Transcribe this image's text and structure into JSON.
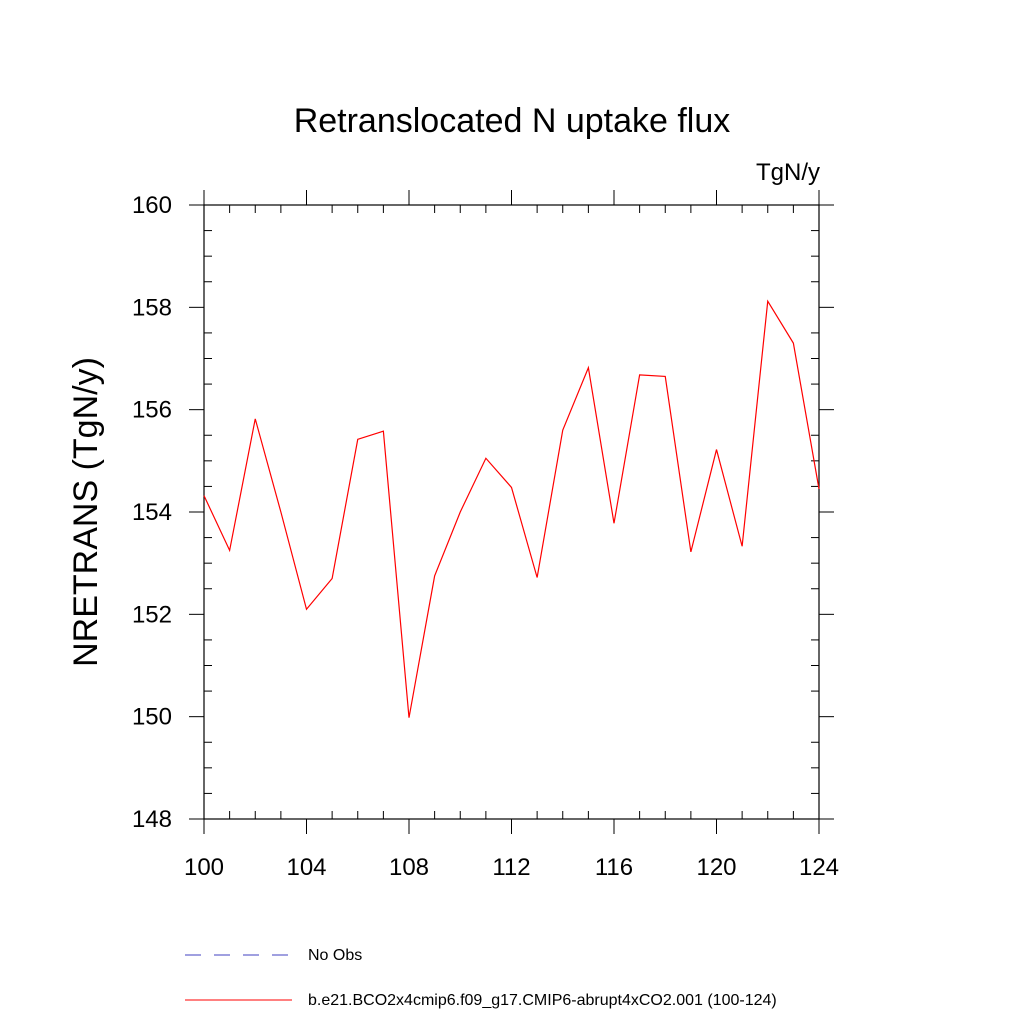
{
  "chart_data": {
    "type": "line",
    "title": "Retranslocated N uptake flux",
    "units": "TgN/y",
    "xlabel": "",
    "ylabel": "NRETRANS  (TgN/y)",
    "xlim": [
      100,
      124
    ],
    "ylim": [
      148,
      160
    ],
    "xticks": [
      100,
      104,
      108,
      112,
      116,
      120,
      124
    ],
    "xtick_labels": [
      "100",
      "104",
      "108",
      "112",
      "116",
      "120",
      "124"
    ],
    "yticks": [
      148,
      150,
      152,
      154,
      156,
      158,
      160
    ],
    "ytick_labels": [
      "148",
      "150",
      "152",
      "154",
      "156",
      "158",
      "160"
    ],
    "x": [
      100,
      101,
      102,
      103,
      104,
      105,
      106,
      107,
      108,
      109,
      110,
      111,
      112,
      113,
      114,
      115,
      116,
      117,
      118,
      119,
      120,
      121,
      122,
      123,
      124
    ],
    "series": [
      {
        "name": "b.e21.BCO2x4cmip6.f09_g17.CMIP6-abrupt4xCO2.001 (100-124)",
        "color": "#ff0000",
        "style": "solid",
        "values": [
          154.32,
          153.25,
          155.82,
          154.0,
          152.1,
          152.7,
          155.42,
          155.58,
          149.98,
          152.75,
          154.0,
          155.05,
          154.48,
          152.72,
          155.6,
          156.82,
          153.78,
          156.68,
          156.65,
          153.22,
          155.22,
          153.33,
          158.12,
          157.3,
          154.45
        ]
      }
    ],
    "legend": [
      {
        "label": "No Obs",
        "color": "#4040c0",
        "style": "dashed"
      },
      {
        "label": "b.e21.BCO2x4cmip6.f09_g17.CMIP6-abrupt4xCO2.001 (100-124)",
        "color": "#ff0000",
        "style": "solid"
      }
    ],
    "legend_position": "bottom-left",
    "grid": false
  }
}
